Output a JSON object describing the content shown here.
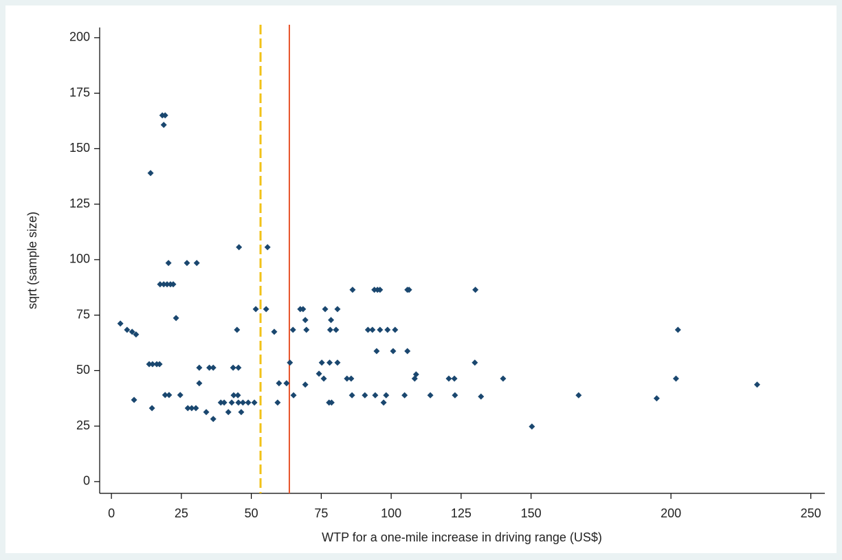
{
  "chart_data": {
    "type": "scatter",
    "xlabel": "WTP for a one-mile increase in driving range (US$)",
    "ylabel": "sqrt (sample size)",
    "color": "#1a476f",
    "x": [
      3.2,
      5.6,
      7.4,
      8.8,
      8.1,
      14.0,
      18.2,
      19.2,
      18.7,
      17.4,
      18.7,
      19.9,
      21.1,
      22.1,
      20.4,
      13.5,
      14.7,
      16.2,
      17.2,
      14.5,
      19.2,
      20.6,
      24.6,
      23.1,
      27.0,
      30.5,
      27.3,
      28.7,
      30.2,
      31.4,
      31.4,
      33.9,
      35.0,
      36.4,
      36.4,
      39.1,
      40.3,
      41.8,
      43.0,
      43.7,
      45.2,
      43.5,
      45.4,
      44.9,
      45.6,
      45.4,
      47.0,
      46.4,
      48.9,
      51.1,
      51.6,
      55.3,
      55.8,
      58.2,
      59.4,
      59.9,
      62.6,
      63.8,
      64.9,
      65.1,
      67.5,
      68.5,
      69.3,
      69.7,
      69.3,
      74.2,
      75.2,
      75.9,
      76.4,
      78.0,
      77.8,
      78.7,
      78.5,
      78.2,
      80.3,
      80.8,
      80.8,
      84.2,
      85.7,
      86.2,
      86.0,
      90.6,
      91.7,
      93.3,
      94.0,
      95.1,
      96.0,
      94.8,
      94.3,
      96.0,
      97.3,
      98.2,
      98.7,
      100.7,
      101.4,
      104.8,
      105.8,
      106.4,
      105.8,
      108.4,
      108.9,
      114.0,
      120.6,
      122.6,
      122.8,
      130.1,
      129.9,
      132.1,
      140.0,
      150.3,
      167.0,
      194.9,
      201.8,
      202.5,
      230.8
    ],
    "values": [
      71.2,
      68.4,
      67.5,
      66.3,
      36.8,
      139.0,
      165.0,
      165.0,
      160.7,
      88.9,
      88.9,
      88.9,
      88.9,
      88.9,
      98.5,
      52.9,
      52.9,
      52.9,
      52.9,
      33.1,
      39.0,
      39.0,
      39.0,
      73.7,
      98.5,
      98.5,
      33.1,
      33.1,
      33.1,
      51.3,
      44.3,
      31.3,
      51.3,
      51.3,
      28.2,
      35.6,
      35.6,
      31.3,
      35.6,
      38.9,
      38.9,
      51.3,
      51.3,
      68.4,
      105.6,
      35.6,
      35.6,
      31.3,
      35.6,
      35.6,
      77.7,
      77.7,
      105.6,
      67.5,
      35.6,
      44.3,
      44.3,
      53.6,
      68.4,
      38.9,
      77.7,
      77.7,
      72.8,
      68.4,
      43.7,
      48.6,
      53.6,
      46.4,
      77.7,
      53.6,
      35.6,
      35.6,
      72.8,
      68.4,
      68.4,
      77.7,
      53.6,
      46.4,
      46.4,
      86.4,
      38.9,
      38.9,
      68.4,
      68.4,
      86.4,
      86.4,
      86.4,
      58.8,
      38.9,
      68.4,
      35.6,
      38.9,
      68.4,
      58.8,
      68.4,
      38.9,
      86.4,
      86.4,
      58.8,
      46.4,
      48.3,
      38.9,
      46.4,
      46.4,
      38.9,
      86.4,
      53.6,
      38.3,
      46.4,
      24.8,
      38.9,
      37.5,
      46.4,
      68.4,
      43.7
    ],
    "vlines": [
      {
        "x": 53.3,
        "color": "#f2c218",
        "dash": true
      },
      {
        "x": 63.6,
        "color": "#e8532a",
        "dash": false
      }
    ],
    "xlim": [
      -4.2,
      255
    ],
    "ylim": [
      -5.3,
      204.6
    ],
    "xticks": [
      0,
      25,
      50,
      75,
      100,
      125,
      150,
      200,
      250
    ],
    "yticks": [
      0,
      25,
      50,
      75,
      100,
      125,
      150,
      175,
      200
    ]
  }
}
